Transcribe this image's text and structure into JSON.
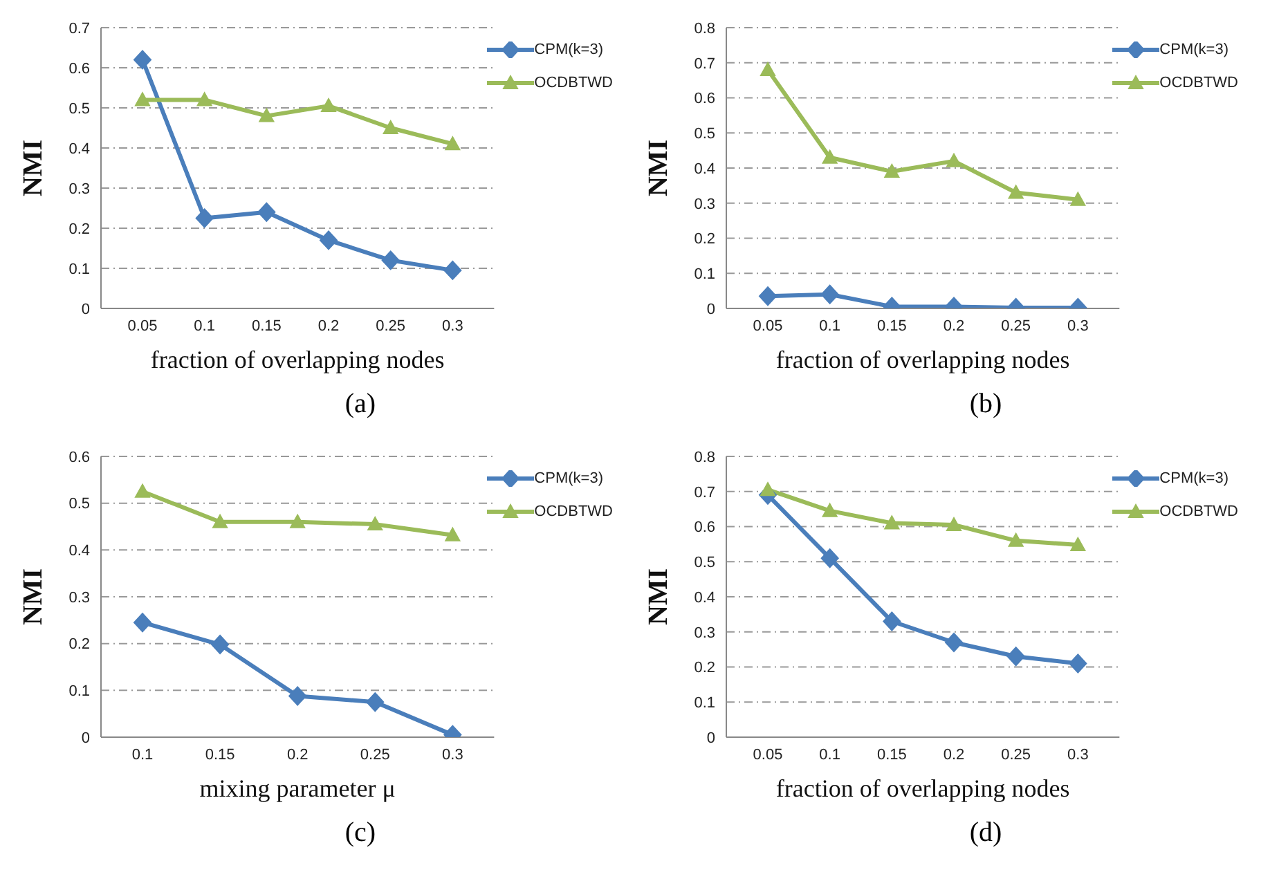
{
  "chart_data": [
    {
      "type": "line",
      "categories": [
        "0.05",
        "0.1",
        "0.15",
        "0.2",
        "0.25",
        "0.3"
      ],
      "xlabel": "fraction of overlapping nodes",
      "ylabel": "NMI",
      "annotations": [
        "(a)"
      ],
      "ylim": [
        0,
        0.7
      ],
      "yticks": [
        0,
        0.1,
        0.2,
        0.3,
        0.4,
        0.5,
        0.6,
        0.7
      ],
      "grid": "y",
      "legend": "top right",
      "series": [
        {
          "name": "CPM(k=3)",
          "color": "#4a7ebb",
          "marker": "diamond",
          "values": [
            0.62,
            0.225,
            0.24,
            0.17,
            0.12,
            0.095
          ]
        },
        {
          "name": "OCDBTWD",
          "color": "#9bbb59",
          "marker": "triangle",
          "values": [
            0.52,
            0.52,
            0.48,
            0.505,
            0.45,
            0.41
          ]
        }
      ]
    },
    {
      "type": "line",
      "categories": [
        "0.05",
        "0.1",
        "0.15",
        "0.2",
        "0.25",
        "0.3"
      ],
      "xlabel": "fraction of overlapping nodes",
      "ylabel": "NMI",
      "annotations": [
        "(b)"
      ],
      "ylim": [
        0,
        0.8
      ],
      "yticks": [
        0,
        0.1,
        0.2,
        0.3,
        0.4,
        0.5,
        0.6,
        0.7,
        0.8
      ],
      "grid": "y",
      "legend": "top right",
      "series": [
        {
          "name": "CPM(k=3)",
          "color": "#4a7ebb",
          "marker": "diamond",
          "values": [
            0.035,
            0.04,
            0.005,
            0.005,
            0.002,
            0.002
          ]
        },
        {
          "name": "OCDBTWD",
          "color": "#9bbb59",
          "marker": "triangle",
          "values": [
            0.68,
            0.43,
            0.39,
            0.42,
            0.33,
            0.31
          ]
        }
      ]
    },
    {
      "type": "line",
      "categories": [
        "0.1",
        "0.15",
        "0.2",
        "0.25",
        "0.3"
      ],
      "xlabel": "mixing  parameter μ",
      "ylabel": "NMI",
      "annotations": [
        "(c)"
      ],
      "ylim": [
        0,
        0.6
      ],
      "yticks": [
        0,
        0.1,
        0.2,
        0.3,
        0.4,
        0.5,
        0.6
      ],
      "grid": "y",
      "legend": "top right",
      "series": [
        {
          "name": "CPM(k=3)",
          "color": "#4a7ebb",
          "marker": "diamond",
          "values": [
            0.245,
            0.198,
            0.088,
            0.075,
            0.005
          ]
        },
        {
          "name": "OCDBTWD",
          "color": "#9bbb59",
          "marker": "triangle",
          "values": [
            0.525,
            0.46,
            0.46,
            0.455,
            0.432
          ]
        }
      ]
    },
    {
      "type": "line",
      "categories": [
        "0.05",
        "0.1",
        "0.15",
        "0.2",
        "0.25",
        "0.3"
      ],
      "xlabel": "fraction of overlapping nodes",
      "ylabel": "NMI",
      "annotations": [
        "(d)"
      ],
      "ylim": [
        0,
        0.8
      ],
      "yticks": [
        0,
        0.1,
        0.2,
        0.3,
        0.4,
        0.5,
        0.6,
        0.7,
        0.8
      ],
      "grid": "y",
      "legend": "top right",
      "series": [
        {
          "name": "CPM(k=3)",
          "color": "#4a7ebb",
          "marker": "diamond",
          "values": [
            0.69,
            0.51,
            0.33,
            0.27,
            0.23,
            0.21
          ]
        },
        {
          "name": "OCDBTWD",
          "color": "#9bbb59",
          "marker": "triangle",
          "values": [
            0.705,
            0.645,
            0.61,
            0.605,
            0.56,
            0.548
          ]
        }
      ]
    }
  ]
}
